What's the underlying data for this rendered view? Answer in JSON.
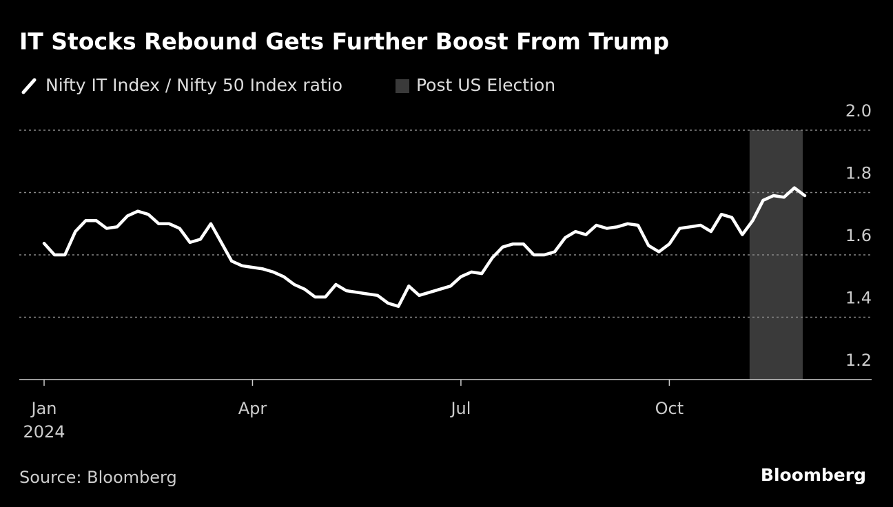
{
  "chart_data": {
    "type": "line",
    "title": "IT Stocks Rebound Gets Further Boost From Trump",
    "source": "Source: Bloomberg",
    "brand": "Bloomberg",
    "year": "2024",
    "categories": [
      "Jan",
      null,
      null,
      null,
      null,
      null,
      null,
      null,
      null,
      null,
      null,
      null,
      null,
      null,
      null,
      null,
      null,
      null,
      null,
      null,
      "Apr",
      null,
      null,
      null,
      null,
      null,
      null,
      null,
      null,
      null,
      null,
      null,
      null,
      null,
      null,
      null,
      null,
      null,
      null,
      null,
      "Jul",
      null,
      null,
      null,
      null,
      null,
      null,
      null,
      null,
      null,
      null,
      null,
      null,
      null,
      null,
      null,
      null,
      null,
      null,
      null,
      "Oct",
      null,
      null,
      null,
      null,
      null,
      null,
      null,
      null,
      null,
      null,
      null,
      null,
      null
    ],
    "series": [
      {
        "name": "Nifty IT Index / Nifty 50 Index ratio",
        "color": "#ffffff",
        "values": [
          1.637,
          1.6,
          1.6,
          1.675,
          1.71,
          1.71,
          1.685,
          1.69,
          1.725,
          1.74,
          1.73,
          1.7,
          1.7,
          1.685,
          1.64,
          1.65,
          1.7,
          1.64,
          1.58,
          1.565,
          1.56,
          1.555,
          1.545,
          1.53,
          1.505,
          1.49,
          1.465,
          1.465,
          1.505,
          1.485,
          1.48,
          1.475,
          1.47,
          1.445,
          1.435,
          1.5,
          1.47,
          1.48,
          1.49,
          1.5,
          1.53,
          1.545,
          1.54,
          1.59,
          1.625,
          1.635,
          1.635,
          1.6,
          1.6,
          1.61,
          1.655,
          1.675,
          1.665,
          1.695,
          1.685,
          1.69,
          1.7,
          1.695,
          1.63,
          1.61,
          1.635,
          1.685,
          1.69,
          1.695,
          1.675,
          1.73,
          1.72,
          1.665,
          1.71,
          1.775,
          1.79,
          1.785,
          1.815,
          1.79
        ]
      }
    ],
    "highlight": {
      "name": "Post US Election",
      "color": "#3a3a3a",
      "start": 67.7,
      "end": 72.8
    },
    "ylim": [
      1.2,
      2.0
    ],
    "yticks": [
      1.2,
      1.4,
      1.6,
      1.8,
      {
        "value": 2.0,
        "label": "2.0"
      }
    ],
    "grid": true
  }
}
